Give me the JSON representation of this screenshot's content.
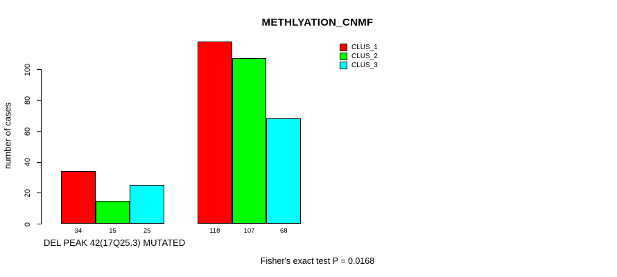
{
  "title": "METHLYATION_CNMF",
  "chart_data": {
    "type": "bar",
    "title": "METHLYATION_CNMF",
    "ylabel": "number of cases",
    "xlabel": "DEL PEAK 42(17Q25.3) MUTATED",
    "footer": "Fisher's exact test P = 0.0168",
    "ylim": [
      0,
      120
    ],
    "yticks": [
      0,
      20,
      40,
      60,
      80,
      100
    ],
    "grid": false,
    "legend_position": "top-right",
    "group_count": 2,
    "series": [
      {
        "name": "CLUS_1",
        "color": "#FF0000",
        "values": [
          34,
          118
        ]
      },
      {
        "name": "CLUS_2",
        "color": "#00FF00",
        "values": [
          15,
          107
        ]
      },
      {
        "name": "CLUS_3",
        "color": "#00FFFF",
        "values": [
          25,
          68
        ]
      }
    ],
    "bar_value_labels": [
      [
        34,
        15,
        25
      ],
      [
        118,
        107,
        68
      ]
    ]
  }
}
